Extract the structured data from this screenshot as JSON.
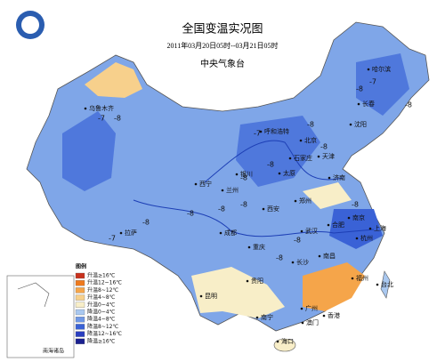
{
  "title": "全国变温实况图",
  "subtitle": "2011年03月20日05时--03月21日05时",
  "source": "中央气象台",
  "legend": {
    "title": "图例",
    "items": [
      {
        "label": "升温≥16℃",
        "color": "#c8321e"
      },
      {
        "label": "升温12~16℃",
        "color": "#ee7a1e"
      },
      {
        "label": "升温8~12℃",
        "color": "#f5a54a"
      },
      {
        "label": "升温4~8℃",
        "color": "#f7d08c"
      },
      {
        "label": "升温0~4℃",
        "color": "#f8eec8"
      },
      {
        "label": "降温0~4℃",
        "color": "#a9c8f0"
      },
      {
        "label": "降温4~8℃",
        "color": "#6f98e6"
      },
      {
        "label": "降温8~12℃",
        "color": "#3a62d6"
      },
      {
        "label": "降温12~16℃",
        "color": "#2a3ec0"
      },
      {
        "label": "降温≥16℃",
        "color": "#1a2090"
      }
    ]
  },
  "inset_label": "南海诸岛",
  "cities": [
    "乌鲁木齐",
    "哈尔滨",
    "长春",
    "沈阳",
    "呼和浩特",
    "北京",
    "天津",
    "石家庄",
    "太原",
    "银川",
    "西宁",
    "兰州",
    "济南",
    "郑州",
    "西安",
    "南京",
    "合肥",
    "上海",
    "杭州",
    "武汉",
    "成都",
    "拉萨",
    "重庆",
    "长沙",
    "南昌",
    "福州",
    "台北",
    "贵阳",
    "昆明",
    "南宁",
    "广州",
    "香港",
    "澳门",
    "海口"
  ],
  "annotations": [
    "-7",
    "-8",
    "-8",
    "-7",
    "-8",
    "-8",
    "-7",
    "-8",
    "-8",
    "-8",
    "-8",
    "-8",
    "-8",
    "-7",
    "-8",
    "-8",
    "-8",
    "-8"
  ]
}
